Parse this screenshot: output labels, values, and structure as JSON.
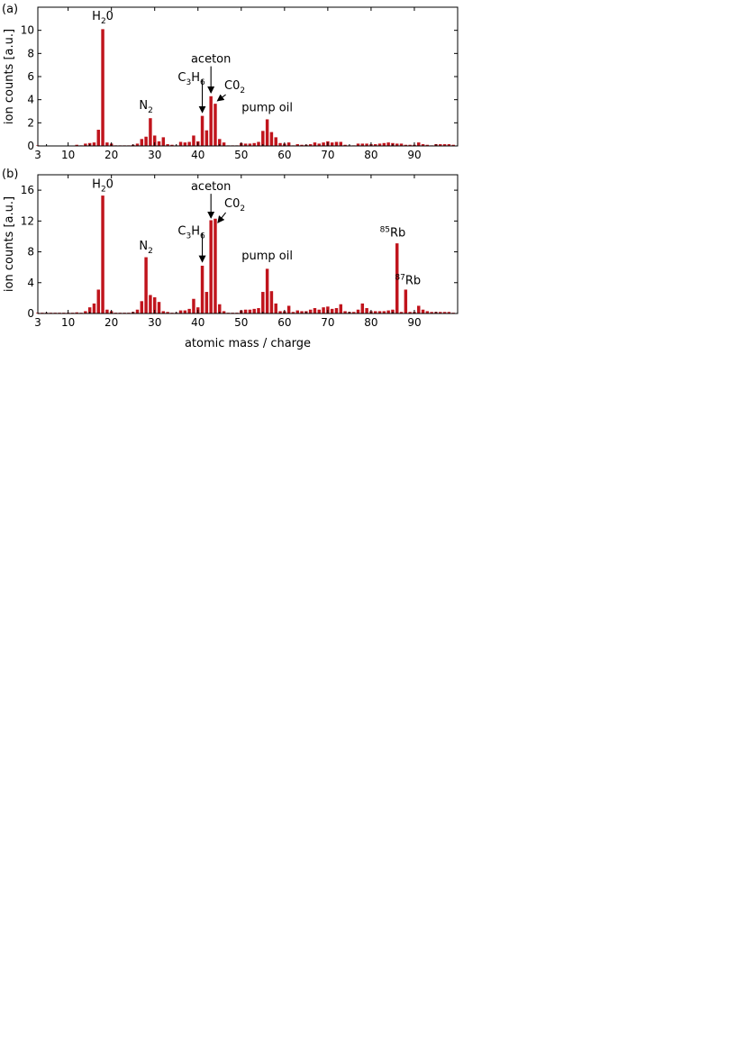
{
  "chart_data": [
    {
      "panel": "(a)",
      "type": "bar",
      "ylabel": "ion counts [a.u.]",
      "xlabel": "",
      "xlim": [
        3,
        100
      ],
      "ylim": [
        0,
        12
      ],
      "xticks": [
        3,
        10,
        20,
        30,
        40,
        50,
        60,
        70,
        80,
        90
      ],
      "yticks": [
        0,
        2,
        4,
        6,
        8,
        10
      ],
      "x": [
        3,
        4,
        5,
        6,
        7,
        8,
        9,
        10,
        11,
        12,
        13,
        14,
        15,
        16,
        17,
        18,
        19,
        20,
        21,
        22,
        23,
        24,
        25,
        26,
        27,
        28,
        29,
        30,
        31,
        32,
        33,
        34,
        35,
        36,
        37,
        38,
        39,
        40,
        41,
        42,
        43,
        44,
        45,
        46,
        47,
        48,
        49,
        50,
        51,
        52,
        53,
        54,
        55,
        56,
        57,
        58,
        59,
        60,
        61,
        62,
        63,
        64,
        65,
        66,
        67,
        68,
        69,
        70,
        71,
        72,
        73,
        74,
        75,
        76,
        77,
        78,
        79,
        80,
        81,
        82,
        83,
        84,
        85,
        86,
        87,
        88,
        89,
        90,
        91,
        92,
        93,
        94,
        95,
        96,
        97,
        98,
        99
      ],
      "values": [
        0.05,
        0.03,
        0.03,
        0.03,
        0.03,
        0.03,
        0.03,
        0.03,
        0.03,
        0.1,
        0.05,
        0.2,
        0.25,
        0.3,
        1.4,
        10.1,
        0.3,
        0.2,
        0.05,
        0.05,
        0.05,
        0.05,
        0.1,
        0.2,
        0.6,
        0.8,
        2.4,
        0.9,
        0.4,
        0.75,
        0.15,
        0.1,
        0.05,
        0.35,
        0.3,
        0.35,
        0.9,
        0.4,
        2.6,
        1.35,
        4.3,
        3.65,
        0.6,
        0.3,
        0.05,
        0.05,
        0.05,
        0.25,
        0.2,
        0.2,
        0.25,
        0.35,
        1.3,
        2.3,
        1.2,
        0.75,
        0.25,
        0.2,
        0.3,
        0.05,
        0.15,
        0.1,
        0.1,
        0.15,
        0.3,
        0.2,
        0.3,
        0.4,
        0.3,
        0.35,
        0.35,
        0.1,
        0.05,
        0.05,
        0.2,
        0.2,
        0.2,
        0.15,
        0.15,
        0.2,
        0.25,
        0.3,
        0.25,
        0.2,
        0.2,
        0.1,
        0.1,
        0.1,
        0.3,
        0.15,
        0.1,
        0.05,
        0.15,
        0.15,
        0.15,
        0.15,
        0.1
      ],
      "annotations": [
        {
          "base": "H",
          "sub": "2",
          "rest": "0",
          "sup": "",
          "x": 18,
          "y": 10.9,
          "arrow": false
        },
        {
          "base": "N",
          "sub": "2",
          "rest": "",
          "sup": "",
          "x": 28,
          "y": 3.2,
          "arrow": false
        },
        {
          "base": "C",
          "sub": "3",
          "rest": "H",
          "sub2": "6",
          "sup": "",
          "x": 38.5,
          "y": 5.6,
          "arrow": true,
          "ax": 41,
          "ay": 2.9
        },
        {
          "base": "aceton",
          "sub": "",
          "rest": "",
          "sup": "",
          "x": 43,
          "y": 7.2,
          "arrow": true,
          "ax": 43,
          "ay": 4.6
        },
        {
          "base": "C0",
          "sub": "2",
          "rest": "",
          "sup": "",
          "x": 48.5,
          "y": 4.9,
          "arrow": true,
          "ax": 44.5,
          "ay": 3.9
        },
        {
          "base": "pump oil",
          "sub": "",
          "rest": "",
          "sup": "",
          "x": 56,
          "y": 3.0,
          "arrow": false
        }
      ]
    },
    {
      "panel": "(b)",
      "type": "bar",
      "ylabel": "ion counts [a.u.]",
      "xlabel": "atomic mass / charge",
      "xlim": [
        3,
        100
      ],
      "ylim": [
        0,
        18
      ],
      "xticks": [
        3,
        10,
        20,
        30,
        40,
        50,
        60,
        70,
        80,
        90
      ],
      "yticks": [
        0,
        4,
        8,
        12,
        16
      ],
      "x": [
        3,
        4,
        5,
        6,
        7,
        8,
        9,
        10,
        11,
        12,
        13,
        14,
        15,
        16,
        17,
        18,
        19,
        20,
        21,
        22,
        23,
        24,
        25,
        26,
        27,
        28,
        29,
        30,
        31,
        32,
        33,
        34,
        35,
        36,
        37,
        38,
        39,
        40,
        41,
        42,
        43,
        44,
        45,
        46,
        47,
        48,
        49,
        50,
        51,
        52,
        53,
        54,
        55,
        56,
        57,
        58,
        59,
        60,
        61,
        62,
        63,
        64,
        65,
        66,
        67,
        68,
        69,
        70,
        71,
        72,
        73,
        74,
        75,
        76,
        77,
        78,
        79,
        80,
        81,
        82,
        83,
        84,
        85,
        86,
        87,
        88,
        89,
        90,
        91,
        92,
        93,
        94,
        95,
        96,
        97,
        98,
        99
      ],
      "values": [
        0.1,
        0.1,
        0.1,
        0.1,
        0.1,
        0.1,
        0.1,
        0.1,
        0.1,
        0.15,
        0.1,
        0.3,
        0.8,
        1.3,
        3.1,
        15.3,
        0.5,
        0.3,
        0.1,
        0.1,
        0.1,
        0.1,
        0.2,
        0.5,
        1.6,
        7.3,
        2.4,
        2.1,
        1.5,
        0.3,
        0.2,
        0.1,
        0.1,
        0.4,
        0.4,
        0.6,
        1.9,
        0.8,
        6.2,
        2.8,
        12.1,
        12.3,
        1.2,
        0.3,
        0.1,
        0.1,
        0.1,
        0.4,
        0.5,
        0.5,
        0.6,
        0.7,
        2.8,
        5.8,
        2.9,
        1.3,
        0.3,
        0.3,
        1.0,
        0.2,
        0.4,
        0.3,
        0.3,
        0.5,
        0.7,
        0.5,
        0.8,
        0.9,
        0.6,
        0.7,
        1.2,
        0.3,
        0.2,
        0.2,
        0.5,
        1.3,
        0.7,
        0.3,
        0.3,
        0.3,
        0.3,
        0.4,
        0.5,
        9.1,
        0.2,
        3.1,
        0.2,
        0.2,
        1.0,
        0.5,
        0.3,
        0.2,
        0.2,
        0.2,
        0.2,
        0.2,
        0.1
      ],
      "annotations": [
        {
          "base": "H",
          "sub": "2",
          "rest": "0",
          "sup": "",
          "x": 18,
          "y": 16.3,
          "arrow": false
        },
        {
          "base": "N",
          "sub": "2",
          "rest": "",
          "sup": "",
          "x": 28,
          "y": 8.3,
          "arrow": false
        },
        {
          "base": "C",
          "sub": "3",
          "rest": "H",
          "sub2": "6",
          "sup": "",
          "x": 38.5,
          "y": 10.2,
          "arrow": true,
          "ax": 41,
          "ay": 6.7
        },
        {
          "base": "aceton",
          "sub": "",
          "rest": "",
          "sup": "",
          "x": 43,
          "y": 16.0,
          "arrow": true,
          "ax": 43,
          "ay": 12.4
        },
        {
          "base": "C0",
          "sub": "2",
          "rest": "",
          "sup": "",
          "x": 48.5,
          "y": 13.8,
          "arrow": true,
          "ax": 44.6,
          "ay": 11.8
        },
        {
          "base": "pump oil",
          "sub": "",
          "rest": "",
          "sup": "",
          "x": 56,
          "y": 7.0,
          "arrow": false
        },
        {
          "base": "Rb",
          "sub": "",
          "rest": "",
          "sup": "85",
          "x": 85,
          "y": 10.0,
          "arrow": false
        },
        {
          "base": "Rb",
          "sub": "",
          "rest": "",
          "sup": "87",
          "x": 88.5,
          "y": 3.8,
          "arrow": false
        }
      ]
    }
  ]
}
